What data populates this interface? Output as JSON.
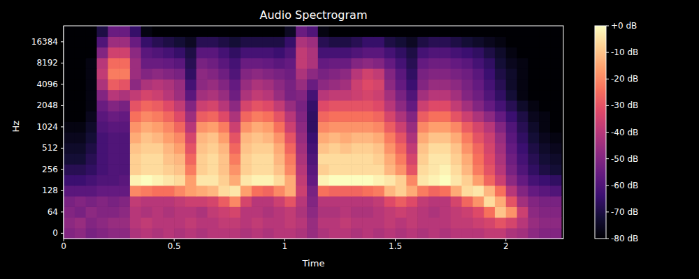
{
  "chart_data": {
    "type": "heatmap",
    "title": "Audio Spectrogram",
    "x_label": "Time",
    "y_label": "Hz",
    "x": [
      0.025,
      0.075,
      0.125,
      0.175,
      0.225,
      0.275,
      0.325,
      0.375,
      0.425,
      0.475,
      0.525,
      0.575,
      0.625,
      0.675,
      0.725,
      0.775,
      0.825,
      0.875,
      0.925,
      0.975,
      1.025,
      1.075,
      1.125,
      1.175,
      1.225,
      1.275,
      1.325,
      1.375,
      1.425,
      1.475,
      1.525,
      1.575,
      1.625,
      1.675,
      1.725,
      1.775,
      1.825,
      1.875,
      1.925,
      1.975,
      2.025,
      2.075,
      2.125,
      2.175,
      2.225
    ],
    "categories": [
      0,
      null,
      64,
      null,
      128,
      null,
      256,
      null,
      512,
      null,
      1024,
      null,
      2048,
      null,
      4096,
      null,
      8192,
      null,
      16384,
      null
    ],
    "cells": [
      [
        -50,
        -48,
        -52,
        -50,
        -48,
        -48,
        -42,
        -40,
        -42,
        -40,
        -42,
        -40,
        -42,
        -40,
        -40,
        -40,
        -42,
        -40,
        -42,
        -40,
        -40,
        -42,
        -46,
        -42,
        -40,
        -40,
        -42,
        -40,
        -42,
        -40,
        -42,
        -40,
        -42,
        -40,
        -42,
        -40,
        -40,
        -40,
        -38,
        -38,
        -42,
        -44,
        -48,
        -50,
        -50
      ],
      [
        -48,
        -46,
        -50,
        -48,
        -46,
        -46,
        -40,
        -38,
        -40,
        -40,
        -40,
        -38,
        -40,
        -40,
        -38,
        -38,
        -40,
        -38,
        -40,
        -40,
        -38,
        -40,
        -46,
        -40,
        -40,
        -38,
        -40,
        -40,
        -40,
        -38,
        -40,
        -38,
        -40,
        -40,
        -40,
        -38,
        -38,
        -36,
        -34,
        -30,
        -34,
        -40,
        -46,
        -48,
        -48
      ],
      [
        -50,
        -52,
        -48,
        -50,
        -50,
        -48,
        -40,
        -42,
        -40,
        -42,
        -40,
        -40,
        -42,
        -38,
        -36,
        -34,
        -40,
        -40,
        -42,
        -40,
        -38,
        -42,
        -48,
        -42,
        -42,
        -40,
        -42,
        -42,
        -40,
        -38,
        -36,
        -38,
        -40,
        -42,
        -40,
        -38,
        -36,
        -32,
        -24,
        -10,
        -18,
        -36,
        -48,
        -50,
        -50
      ],
      [
        -52,
        -50,
        -52,
        -50,
        -52,
        -50,
        -38,
        -40,
        -40,
        -40,
        -38,
        -36,
        -36,
        -34,
        -28,
        -20,
        -34,
        -40,
        -40,
        -36,
        -30,
        -40,
        -50,
        -40,
        -40,
        -40,
        -40,
        -40,
        -38,
        -32,
        -28,
        -32,
        -38,
        -40,
        -40,
        -34,
        -26,
        -18,
        -6,
        -14,
        -30,
        -44,
        -50,
        -52,
        -52
      ],
      [
        -58,
        -58,
        -58,
        -56,
        -56,
        -56,
        -20,
        -22,
        -24,
        -24,
        -20,
        -16,
        -14,
        -12,
        -6,
        -4,
        -16,
        -24,
        -26,
        -20,
        -14,
        -36,
        -52,
        -24,
        -26,
        -26,
        -26,
        -24,
        -22,
        -12,
        -8,
        -14,
        -22,
        -26,
        -24,
        -14,
        -6,
        -4,
        -12,
        -24,
        -40,
        -50,
        -56,
        -58,
        -60
      ],
      [
        -64,
        -64,
        -62,
        -60,
        -60,
        -58,
        -2,
        0,
        -2,
        -4,
        -6,
        -16,
        -4,
        -4,
        -8,
        -14,
        -4,
        -2,
        -2,
        -6,
        -14,
        -38,
        -56,
        -2,
        0,
        0,
        0,
        0,
        -2,
        -4,
        -8,
        -20,
        -4,
        -2,
        0,
        -4,
        -8,
        -16,
        -26,
        -36,
        -48,
        -56,
        -62,
        -64,
        -66
      ],
      [
        -68,
        -68,
        -66,
        -62,
        -60,
        -60,
        -8,
        -6,
        -6,
        -8,
        -10,
        -22,
        -8,
        -6,
        -10,
        -18,
        -8,
        -6,
        -6,
        -10,
        -20,
        -40,
        -58,
        -8,
        -6,
        -6,
        -6,
        -6,
        -6,
        -12,
        -18,
        -30,
        -6,
        -4,
        -2,
        -6,
        -12,
        -22,
        -30,
        -40,
        -52,
        -60,
        -66,
        -70,
        -72
      ],
      [
        -72,
        -72,
        -68,
        -62,
        -60,
        -60,
        -8,
        -6,
        -6,
        -10,
        -12,
        -26,
        -8,
        -6,
        -10,
        -22,
        -8,
        -6,
        -6,
        -12,
        -22,
        -42,
        -60,
        -6,
        -6,
        -6,
        -6,
        -6,
        -8,
        -14,
        -22,
        -34,
        -8,
        -4,
        -4,
        -8,
        -14,
        -24,
        -32,
        -42,
        -54,
        -62,
        -68,
        -72,
        -74
      ],
      [
        -74,
        -74,
        -70,
        -62,
        -60,
        -60,
        -10,
        -8,
        -8,
        -12,
        -16,
        -30,
        -10,
        -8,
        -12,
        -26,
        -10,
        -8,
        -8,
        -14,
        -26,
        -44,
        -62,
        -10,
        -8,
        -10,
        -8,
        -8,
        -10,
        -18,
        -26,
        -38,
        -10,
        -6,
        -6,
        -10,
        -18,
        -26,
        -34,
        -44,
        -56,
        -64,
        -70,
        -74,
        -76
      ],
      [
        -76,
        -76,
        -72,
        -62,
        -60,
        -60,
        -14,
        -10,
        -12,
        -16,
        -20,
        -34,
        -12,
        -10,
        -16,
        -30,
        -12,
        -10,
        -12,
        -18,
        -30,
        -46,
        -64,
        -14,
        -12,
        -14,
        -12,
        -12,
        -14,
        -22,
        -30,
        -42,
        -14,
        -10,
        -10,
        -14,
        -22,
        -30,
        -36,
        -46,
        -58,
        -66,
        -72,
        -76,
        -78
      ],
      [
        -78,
        -78,
        -74,
        -60,
        -58,
        -58,
        -18,
        -14,
        -16,
        -20,
        -26,
        -40,
        -18,
        -16,
        -22,
        -36,
        -18,
        -14,
        -16,
        -24,
        -36,
        -48,
        -66,
        -20,
        -18,
        -18,
        -18,
        -18,
        -20,
        -28,
        -36,
        -46,
        -20,
        -16,
        -16,
        -20,
        -28,
        -34,
        -40,
        -50,
        -60,
        -68,
        -74,
        -78,
        -80
      ],
      [
        -80,
        -80,
        -76,
        -58,
        -55,
        -56,
        -24,
        -20,
        -22,
        -26,
        -32,
        -45,
        -28,
        -26,
        -32,
        -42,
        -26,
        -22,
        -24,
        -30,
        -40,
        -50,
        -66,
        -26,
        -24,
        -24,
        -24,
        -24,
        -26,
        -34,
        -42,
        -50,
        -28,
        -24,
        -24,
        -30,
        -36,
        -42,
        -48,
        -56,
        -64,
        -70,
        -76,
        -78,
        -80
      ],
      [
        -80,
        -80,
        -78,
        -55,
        -50,
        -52,
        -30,
        -26,
        -28,
        -32,
        -38,
        -50,
        -36,
        -34,
        -40,
        -48,
        -34,
        -30,
        -32,
        -38,
        -46,
        -52,
        -65,
        -32,
        -30,
        -30,
        -30,
        -30,
        -32,
        -40,
        -48,
        -56,
        -36,
        -32,
        -32,
        -38,
        -44,
        -50,
        -56,
        -62,
        -68,
        -74,
        -78,
        -80,
        -80
      ],
      [
        -80,
        -80,
        -78,
        -50,
        -40,
        -42,
        -38,
        -34,
        -36,
        -40,
        -45,
        -58,
        -44,
        -42,
        -46,
        -54,
        -42,
        -38,
        -40,
        -46,
        -52,
        -50,
        -62,
        -40,
        -38,
        -38,
        -36,
        -34,
        -36,
        -44,
        -52,
        -60,
        -44,
        -40,
        -40,
        -44,
        -50,
        -54,
        -60,
        -66,
        -72,
        -78,
        -80,
        -80,
        -80
      ],
      [
        -80,
        -80,
        -78,
        -42,
        -28,
        -30,
        -48,
        -42,
        -40,
        -42,
        -46,
        -62,
        -48,
        -46,
        -50,
        -56,
        -46,
        -42,
        -44,
        -48,
        -52,
        -46,
        -55,
        -48,
        -46,
        -44,
        -36,
        -32,
        -34,
        -48,
        -56,
        -64,
        -50,
        -46,
        -46,
        -48,
        -52,
        -56,
        -62,
        -68,
        -74,
        -78,
        -80,
        -80,
        -80
      ],
      [
        -80,
        -80,
        -78,
        -38,
        -22,
        -22,
        -45,
        -50,
        -48,
        -50,
        -52,
        -66,
        -48,
        -50,
        -54,
        -60,
        -50,
        -48,
        -50,
        -52,
        -54,
        -42,
        -48,
        -52,
        -50,
        -48,
        -40,
        -35,
        -38,
        -50,
        -58,
        -66,
        -52,
        -50,
        -50,
        -52,
        -54,
        -58,
        -64,
        -70,
        -74,
        -78,
        -80,
        -80,
        -80
      ],
      [
        -80,
        -80,
        -78,
        -40,
        -25,
        -25,
        -45,
        -55,
        -55,
        -56,
        -58,
        -68,
        -52,
        -54,
        -58,
        -62,
        -55,
        -55,
        -56,
        -58,
        -56,
        -38,
        -42,
        -56,
        -55,
        -55,
        -50,
        -48,
        -50,
        -56,
        -62,
        -68,
        -56,
        -54,
        -54,
        -56,
        -58,
        -62,
        -66,
        -72,
        -76,
        -78,
        -80,
        -80,
        -80
      ],
      [
        -80,
        -80,
        -80,
        -50,
        -35,
        -35,
        -48,
        -58,
        -60,
        -62,
        -65,
        -70,
        -58,
        -58,
        -62,
        -66,
        -62,
        -62,
        -62,
        -64,
        -60,
        -38,
        -42,
        -62,
        -62,
        -62,
        -60,
        -58,
        -58,
        -62,
        -66,
        -70,
        -62,
        -60,
        -60,
        -62,
        -64,
        -66,
        -70,
        -74,
        -78,
        -80,
        -80,
        -80,
        -80
      ],
      [
        -80,
        -80,
        -80,
        -60,
        -45,
        -45,
        -55,
        -65,
        -68,
        -70,
        -72,
        -75,
        -68,
        -68,
        -70,
        -72,
        -70,
        -70,
        -70,
        -70,
        -65,
        -42,
        -45,
        -68,
        -70,
        -70,
        -68,
        -65,
        -65,
        -70,
        -72,
        -75,
        -70,
        -68,
        -68,
        -70,
        -72,
        -74,
        -76,
        -78,
        -80,
        -80,
        -80,
        -80,
        -80
      ],
      [
        -80,
        -80,
        -80,
        -70,
        -55,
        -55,
        -65,
        -78,
        -80,
        -80,
        -80,
        -80,
        -80,
        -80,
        -80,
        -80,
        -80,
        -80,
        -80,
        -80,
        -75,
        -55,
        -60,
        -78,
        -80,
        -80,
        -80,
        -80,
        -80,
        -80,
        -80,
        -80,
        -80,
        -80,
        -80,
        -80,
        -80,
        -80,
        -80,
        -80,
        -80,
        -80,
        -80,
        -80,
        -80
      ]
    ],
    "xlim": [
      0,
      2.26
    ],
    "xticks": [
      0,
      0.5,
      1,
      1.5,
      2
    ],
    "colorbar": {
      "range": [
        -80,
        0
      ],
      "ticks": [
        {
          "value": 0,
          "label": "+0 dB"
        },
        {
          "value": -10,
          "label": "-10 dB"
        },
        {
          "value": -20,
          "label": "-20 dB"
        },
        {
          "value": -30,
          "label": "-30 dB"
        },
        {
          "value": -40,
          "label": "-40 dB"
        },
        {
          "value": -50,
          "label": "-50 dB"
        },
        {
          "value": -60,
          "label": "-60 dB"
        },
        {
          "value": -70,
          "label": "-70 dB"
        },
        {
          "value": -80,
          "label": "-80 dB"
        }
      ]
    }
  }
}
